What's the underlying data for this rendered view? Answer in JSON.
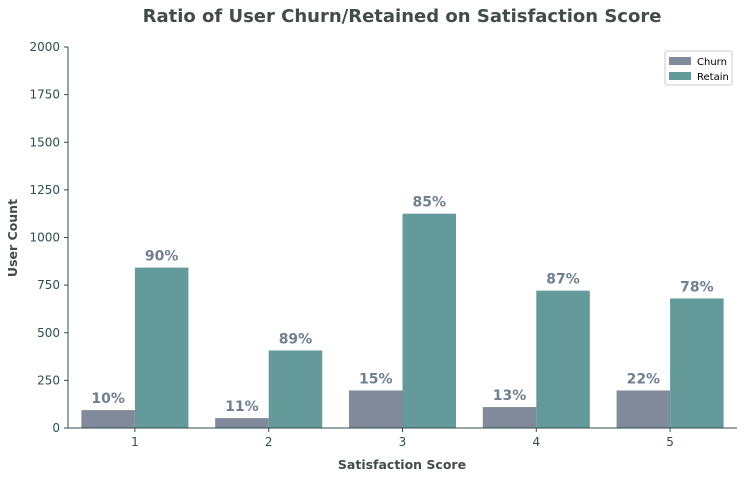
{
  "chart_data": {
    "type": "bar",
    "title": "Ratio of User Churn/Retained on Satisfaction Score",
    "xlabel": "Satisfaction Score",
    "ylabel": "User Count",
    "categories": [
      "1",
      "2",
      "3",
      "4",
      "5"
    ],
    "ylim": [
      0,
      2000
    ],
    "yticks": [
      "0",
      "250",
      "500",
      "750",
      "1000",
      "1250",
      "1500",
      "1750",
      "2000"
    ],
    "series": [
      {
        "name": "Churn",
        "color": "#808a9a",
        "values": [
          94,
          52,
          197,
          110,
          197
        ],
        "labels": [
          "10%",
          "11%",
          "15%",
          "13%",
          "22%"
        ]
      },
      {
        "name": "Retain",
        "color": "#659a9a",
        "values": [
          842,
          407,
          1125,
          721,
          680
        ],
        "labels": [
          "90%",
          "89%",
          "85%",
          "87%",
          "78%"
        ]
      }
    ],
    "legend": "top-right",
    "grid": false
  }
}
